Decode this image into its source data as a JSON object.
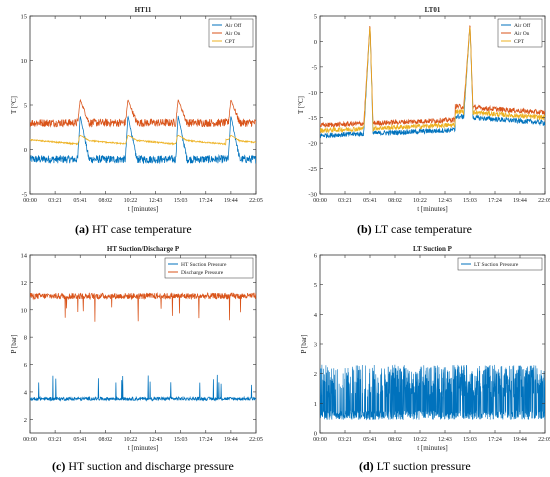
{
  "x_axis": {
    "label": "t [minutes]",
    "ticks": [
      "00:00",
      "03:21",
      "05:41",
      "08:02",
      "10:22",
      "12:43",
      "15:03",
      "17:24",
      "19:44",
      "22:05"
    ]
  },
  "colors": {
    "blue": "#0072BD",
    "orange": "#D95319",
    "yellow": "#EDB120"
  },
  "panels": [
    {
      "letter": "(a)",
      "caption": "HT case temperature"
    },
    {
      "letter": "(b)",
      "caption": "LT case temperature"
    },
    {
      "letter": "(c)",
      "caption": "HT suction and discharge pressure"
    },
    {
      "letter": "(d)",
      "caption": "LT suction pressure"
    }
  ],
  "chart_data": [
    {
      "type": "line",
      "title": "HT11",
      "xlabel": "t [minutes]",
      "ylabel": "T [°C]",
      "ylim": [
        -5,
        15
      ],
      "yticks": [
        -5,
        0,
        5,
        10,
        15
      ],
      "grid": false,
      "legend": "top-right",
      "x": [
        0,
        1,
        2,
        3,
        4,
        5,
        6,
        7,
        8,
        9
      ],
      "series": [
        {
          "name": "Air Off",
          "values": [
            -1.1,
            -1.2,
            3.5,
            -1.0,
            -1.1,
            4.2,
            -1.0,
            -1.2,
            4.0,
            -1.1
          ]
        },
        {
          "name": "Air On",
          "values": [
            3.0,
            3.1,
            5.0,
            3.0,
            3.2,
            5.9,
            3.1,
            3.0,
            5.6,
            3.1
          ]
        },
        {
          "name": "CPT",
          "values": [
            1.1,
            0.6,
            1.6,
            0.7,
            0.7,
            1.7,
            0.8,
            0.6,
            1.6,
            0.9
          ]
        }
      ]
    },
    {
      "type": "line",
      "title": "LT01",
      "xlabel": "t [minutes]",
      "ylabel": "T [°C]",
      "ylim": [
        -30,
        5
      ],
      "yticks": [
        -30,
        -25,
        -20,
        -15,
        -10,
        -5,
        0,
        5
      ],
      "grid": false,
      "legend": "top-right",
      "x": [
        0,
        1,
        2,
        3,
        4,
        5,
        6,
        7,
        8,
        9
      ],
      "series": [
        {
          "name": "Air Off",
          "values": [
            -18.0,
            -18.5,
            3.0,
            -17.5,
            -17.0,
            -16.5,
            3.0,
            -13.5,
            -14.0,
            -14.5
          ]
        },
        {
          "name": "Air On",
          "values": [
            -16.0,
            -16.5,
            3.8,
            -15.5,
            -15.0,
            -14.5,
            3.6,
            -11.5,
            -12.5,
            -13.0
          ]
        },
        {
          "name": "CPT",
          "values": [
            -17.0,
            -17.5,
            3.4,
            -16.5,
            -16.0,
            -15.5,
            3.3,
            -12.5,
            -13.2,
            -13.8
          ]
        }
      ]
    },
    {
      "type": "line",
      "title": "HT Suction/Discharge P",
      "xlabel": "t [minutes]",
      "ylabel": "P [bar]",
      "ylim": [
        1,
        14
      ],
      "yticks": [
        2,
        4,
        6,
        8,
        10,
        12,
        14
      ],
      "grid": false,
      "legend": "top-right",
      "x": [
        0,
        1,
        2,
        3,
        4,
        5,
        6,
        7,
        8,
        9
      ],
      "series": [
        {
          "name": "HT Suction Pressure",
          "values": [
            3.5,
            3.6,
            3.5,
            3.5,
            3.4,
            3.5,
            3.6,
            3.5,
            3.4,
            3.4
          ]
        },
        {
          "name": "Discharge Pressure",
          "values": [
            11.0,
            10.9,
            11.1,
            11.0,
            10.9,
            11.0,
            11.1,
            11.0,
            10.9,
            11.0
          ]
        }
      ]
    },
    {
      "type": "line",
      "title": "LT Suction P",
      "xlabel": "t [minutes]",
      "ylabel": "P [bar]",
      "ylim": [
        0,
        6
      ],
      "yticks": [
        0,
        1,
        2,
        3,
        4,
        5,
        6
      ],
      "grid": false,
      "legend": "top-right",
      "x": [
        0,
        1,
        2,
        3,
        4,
        5,
        6,
        7,
        8,
        9
      ],
      "series": [
        {
          "name": "LT Suction Pressure",
          "values": [
            0.9,
            0.8,
            1.2,
            1.0,
            1.1,
            1.2,
            1.3,
            1.2,
            1.2,
            1.1
          ]
        }
      ]
    }
  ]
}
